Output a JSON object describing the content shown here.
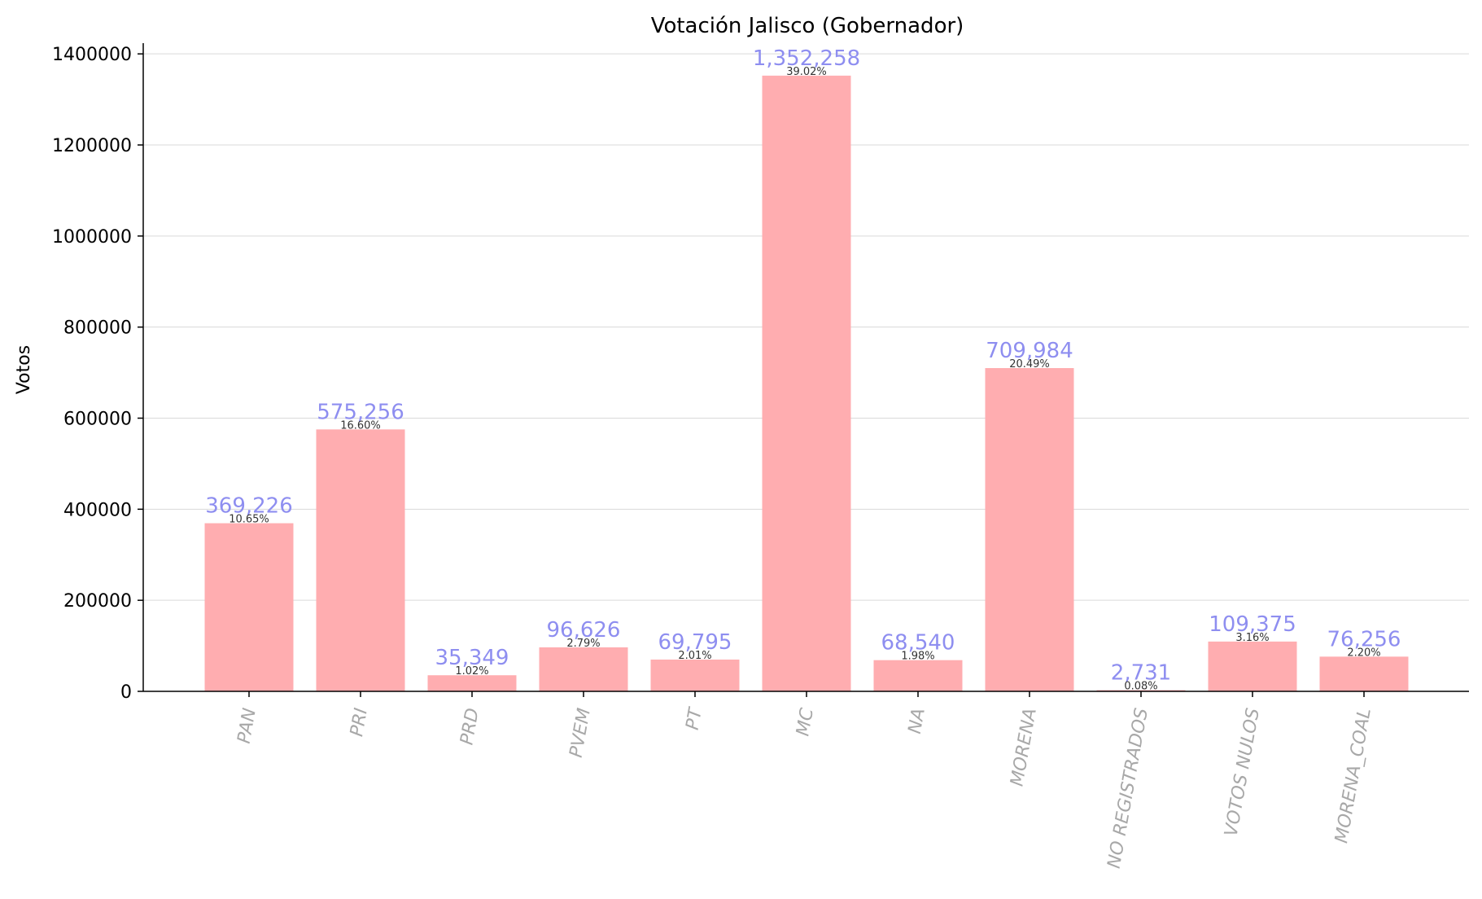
{
  "chart_data": {
    "type": "bar",
    "title": "Votación Jalisco (Gobernador)",
    "xlabel": "",
    "ylabel": "Votos",
    "ylim": [
      0,
      1420000
    ],
    "yticks": [
      0,
      200000,
      400000,
      600000,
      800000,
      1000000,
      1200000,
      1400000
    ],
    "ytick_labels": [
      "0",
      "200000",
      "400000",
      "600000",
      "800000",
      "1000000",
      "1200000",
      "1400000"
    ],
    "grid": "horizontal",
    "categories": [
      "PAN",
      "PRI",
      "PRD",
      "PVEM",
      "PT",
      "MC",
      "NA",
      "MORENA",
      "NO REGISTRADOS",
      "VOTOS NULOS",
      "MORENA_COAL"
    ],
    "values": [
      369226,
      575256,
      35349,
      96626,
      69795,
      1352258,
      68540,
      709984,
      2731,
      109375,
      76256
    ],
    "value_labels": [
      "369,226",
      "575,256",
      "35,349",
      "96,626",
      "69,795",
      "1,352,258",
      "68,540",
      "709,984",
      "2,731",
      "109,375",
      "76,256"
    ],
    "percent_labels": [
      "10.65%",
      "16.60%",
      "1.02%",
      "2.79%",
      "2.01%",
      "39.02%",
      "1.98%",
      "20.49%",
      "0.08%",
      "3.16%",
      "2.20%"
    ],
    "colors": {
      "bar": "#ffadb0",
      "value_label": "#8e8ef0",
      "tick_label_x": "#a8a8a8",
      "grid": "#d9d9d9",
      "axis": "#000000"
    }
  }
}
